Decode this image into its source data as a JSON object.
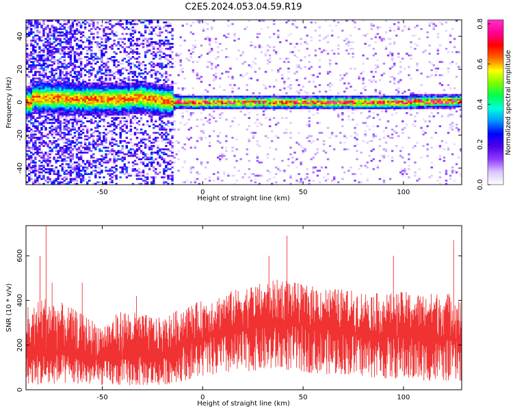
{
  "page": {
    "title": "C2E5.2024.053.04.59.R19"
  },
  "chart_data": [
    {
      "type": "heatmap",
      "xlabel": "Height of straight line (km)",
      "ylabel": "Frequency (Hz)",
      "xlim": [
        -88,
        129
      ],
      "ylim": [
        -50,
        50
      ],
      "x_ticks": [
        -50,
        0,
        50,
        100
      ],
      "y_ticks": [
        -40,
        -20,
        0,
        20,
        40
      ],
      "grid": false,
      "colorbar": {
        "label": "Normalized spectral amplitude",
        "range": [
          0,
          0.82
        ],
        "ticks": [
          0.0,
          0.2,
          0.4,
          0.6,
          0.8
        ],
        "colors": [
          "#ffffff",
          "#dcc4ff",
          "#8c3cff",
          "#5000e6",
          "#0000ff",
          "#0096ff",
          "#00ffdc",
          "#00ff50",
          "#78ff00",
          "#ffff00",
          "#ff6400",
          "#ff0000",
          "#ff0096",
          "#ff32c8"
        ]
      },
      "description_band": {
        "center_frequency": [
          {
            "x": -85,
            "f": 3
          },
          {
            "x": -60,
            "f": 2
          },
          {
            "x": -40,
            "f": 2
          },
          {
            "x": -30,
            "f": 3
          },
          {
            "x": -20,
            "f": 1
          },
          {
            "x": -10,
            "f": 0
          },
          {
            "x": 0,
            "f": 0
          },
          {
            "x": 50,
            "f": 0
          },
          {
            "x": 100,
            "f": 0
          },
          {
            "x": 129,
            "f": 1
          }
        ]
      }
    },
    {
      "type": "line",
      "xlabel": "Height of straight line (km)",
      "ylabel": "SNR (10 * v/v)",
      "xlim": [
        -88,
        129
      ],
      "ylim": [
        0,
        735
      ],
      "x_ticks": [
        -50,
        0,
        50,
        100
      ],
      "y_ticks": [
        0,
        200,
        400,
        600
      ],
      "color": "#f03232",
      "grid": false,
      "series_envelope": [
        {
          "x": -88,
          "low": 30,
          "mean": 150,
          "high": 330
        },
        {
          "x": -80,
          "low": 20,
          "mean": 170,
          "high": 420
        },
        {
          "x": -70,
          "low": 30,
          "mean": 160,
          "high": 390
        },
        {
          "x": -60,
          "low": 25,
          "mean": 155,
          "high": 340
        },
        {
          "x": -50,
          "low": 20,
          "mean": 130,
          "high": 290
        },
        {
          "x": -40,
          "low": 20,
          "mean": 140,
          "high": 360
        },
        {
          "x": -30,
          "low": 20,
          "mean": 150,
          "high": 340
        },
        {
          "x": -20,
          "low": 20,
          "mean": 140,
          "high": 320
        },
        {
          "x": -10,
          "low": 40,
          "mean": 200,
          "high": 370
        },
        {
          "x": 0,
          "low": 60,
          "mean": 230,
          "high": 400
        },
        {
          "x": 10,
          "low": 70,
          "mean": 245,
          "high": 430
        },
        {
          "x": 20,
          "low": 80,
          "mean": 265,
          "high": 460
        },
        {
          "x": 30,
          "low": 90,
          "mean": 280,
          "high": 480
        },
        {
          "x": 40,
          "low": 90,
          "mean": 290,
          "high": 500
        },
        {
          "x": 50,
          "low": 80,
          "mean": 285,
          "high": 470
        },
        {
          "x": 60,
          "low": 70,
          "mean": 270,
          "high": 460
        },
        {
          "x": 70,
          "low": 70,
          "mean": 260,
          "high": 450
        },
        {
          "x": 80,
          "low": 60,
          "mean": 250,
          "high": 440
        },
        {
          "x": 90,
          "low": 50,
          "mean": 240,
          "high": 430
        },
        {
          "x": 100,
          "low": 50,
          "mean": 240,
          "high": 440
        },
        {
          "x": 110,
          "low": 40,
          "mean": 230,
          "high": 430
        },
        {
          "x": 120,
          "low": 40,
          "mean": 225,
          "high": 440
        },
        {
          "x": 129,
          "low": 40,
          "mean": 220,
          "high": 420
        }
      ],
      "spikes": [
        {
          "x": -87,
          "y": 370
        },
        {
          "x": -81,
          "y": 600
        },
        {
          "x": -78,
          "y": 735
        },
        {
          "x": -75,
          "y": 480
        },
        {
          "x": -60,
          "y": 480
        },
        {
          "x": -33,
          "y": 420
        },
        {
          "x": 33,
          "y": 600
        },
        {
          "x": 42,
          "y": 690
        },
        {
          "x": 95,
          "y": 600
        },
        {
          "x": 125,
          "y": 670
        }
      ]
    }
  ]
}
